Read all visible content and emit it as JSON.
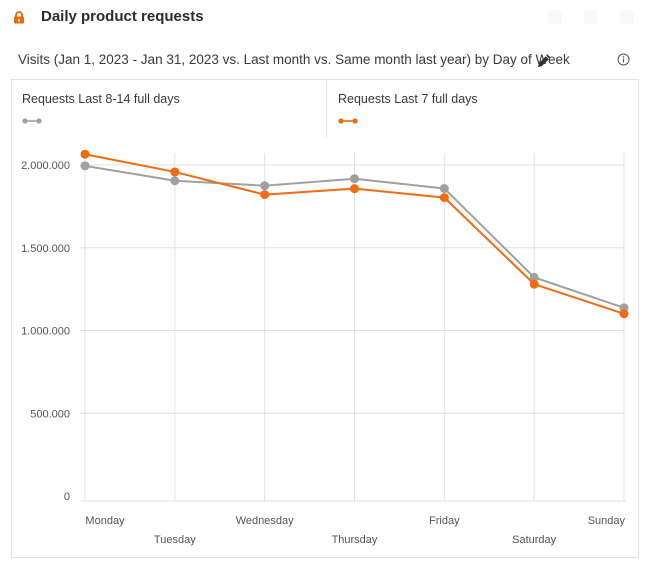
{
  "header": {
    "title": "Daily product requests",
    "lock_icon": "lock-icon"
  },
  "subtitle": {
    "text": "Visits (Jan 1, 2023 - Jan 31, 2023 vs. Last month vs. Same month last year) by Day of Week",
    "edit_icon": "pencil-icon",
    "info_icon": "info-icon"
  },
  "colors": {
    "accent": "#f26b10",
    "secondary": "#a0a0a0",
    "grid": "#e1e1e1",
    "lock": "#e8690f"
  },
  "legend": [
    {
      "label": "Requests Last 8-14 full days",
      "color": "#a0a0a0"
    },
    {
      "label": "Requests Last 7 full days",
      "color": "#f26b10"
    }
  ],
  "chart_data": {
    "type": "line",
    "title": "Daily product requests",
    "subtitle": "Visits (Jan 1, 2023 - Jan 31, 2023 vs. Last month vs. Same month last year) by Day of Week",
    "xlabel": "",
    "ylabel": "",
    "categories": [
      "Monday",
      "Tuesday",
      "Wednesday",
      "Thursday",
      "Friday",
      "Saturday",
      "Sunday"
    ],
    "ylim": [
      0,
      2100000
    ],
    "yticks": [
      0,
      500000,
      1000000,
      1500000,
      2000000
    ],
    "ytick_labels": [
      "0",
      "500.000",
      "1.000.000",
      "1.500.000",
      "2.000.000"
    ],
    "grid": true,
    "legend_position": "top",
    "series": [
      {
        "name": "Requests Last 8-14 full days",
        "color": "#a0a0a0",
        "values": [
          1995000,
          1905000,
          1875000,
          1917000,
          1858000,
          1321000,
          1137000
        ]
      },
      {
        "name": "Requests Last 7 full days",
        "color": "#f26b10",
        "values": [
          2065000,
          1958000,
          1821000,
          1857000,
          1803000,
          1280000,
          1101000
        ]
      }
    ]
  }
}
